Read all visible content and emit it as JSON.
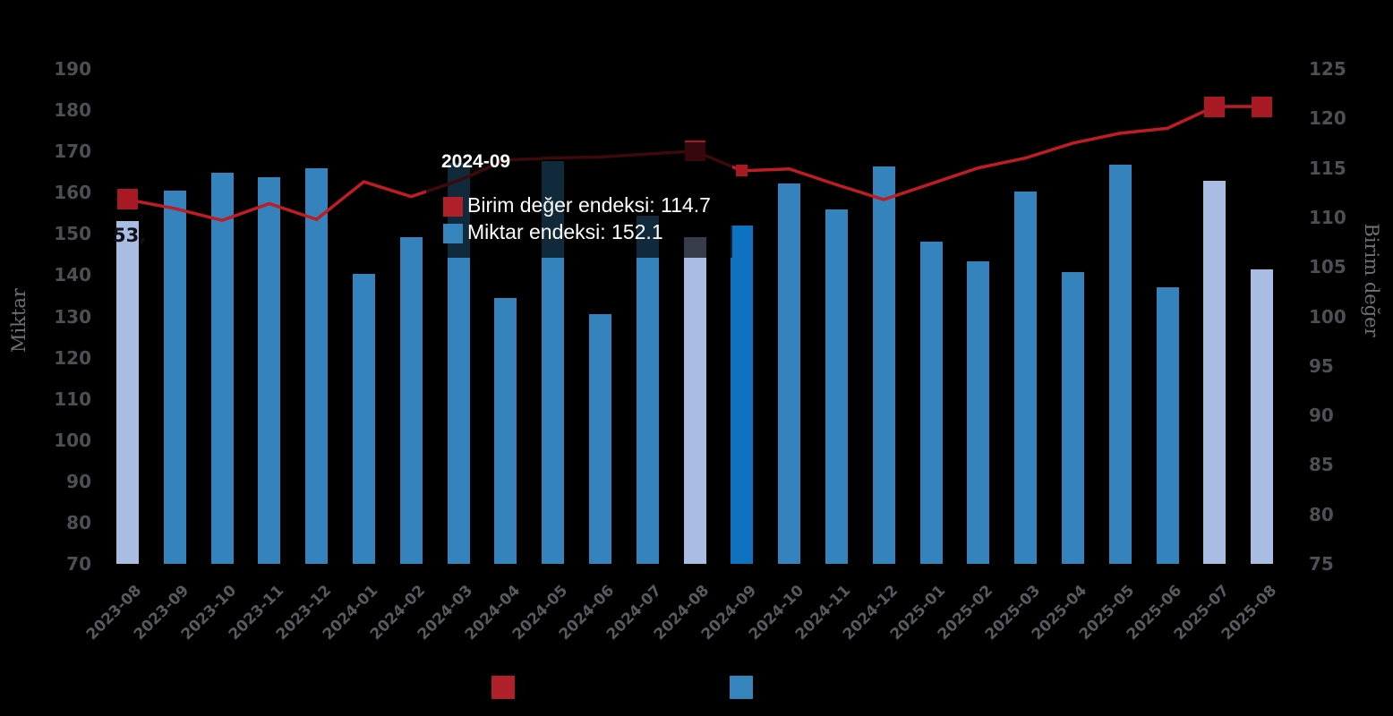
{
  "chart_data": {
    "type": "bar+line combo, dual y-axis",
    "categories": [
      "2023-08",
      "2023-09",
      "2023-10",
      "2023-11",
      "2023-12",
      "2024-01",
      "2024-02",
      "2024-03",
      "2024-04",
      "2024-05",
      "2024-06",
      "2024-07",
      "2024-08",
      "2024-09",
      "2024-10",
      "2024-11",
      "2024-12",
      "2025-01",
      "2025-02",
      "2025-03",
      "2025-04",
      "2025-05",
      "2025-06",
      "2025-07",
      "2025-08"
    ],
    "series": [
      {
        "name": "Miktar endeksi",
        "type": "bar",
        "axis": "left",
        "values": [
          153.2,
          160.4,
          164.9,
          163.7,
          165.9,
          140.2,
          149.2,
          167.3,
          134.4,
          167.6,
          130.5,
          154.4,
          149.2,
          152.1,
          162.3,
          156.0,
          166.4,
          148.1,
          143.3,
          160.2,
          140.7,
          166.7,
          137.1,
          162.9,
          141.4
        ],
        "highlight_indices": [
          0,
          12,
          23,
          24
        ],
        "hover_index": 13
      },
      {
        "name": "Birim değer endeksi",
        "type": "line",
        "axis": "right",
        "values": [
          111.8,
          110.9,
          109.7,
          111.4,
          109.8,
          113.6,
          112.1,
          113.7,
          115.8,
          116.0,
          116.1,
          116.4,
          116.7,
          114.7,
          114.9,
          113.3,
          111.8,
          113.4,
          115.0,
          116.0,
          117.5,
          118.5,
          119.0,
          121.2,
          121.2
        ],
        "big_marker_indices": [
          0,
          12,
          23,
          24
        ],
        "small_marker_indices": [
          13
        ]
      }
    ],
    "ylabel_left": "Miktar",
    "ylabel_right": "Birim değer",
    "ylim_left": [
      70,
      190
    ],
    "ylim_right": [
      75,
      125
    ],
    "left_ticks": [
      190,
      180,
      170,
      160,
      150,
      140,
      130,
      120,
      110,
      100,
      90,
      80,
      70
    ],
    "right_ticks": [
      125,
      120,
      115,
      110,
      105,
      100,
      95,
      90,
      85,
      80,
      75
    ],
    "grid": false,
    "legend_position": "bottom"
  },
  "tooltip": {
    "title": "2024-09",
    "rows": [
      {
        "label": "Birim değer endeksi",
        "value": "114.7",
        "color": "#b0202a"
      },
      {
        "label": "Miktar endeksi",
        "value": "152.1",
        "color": "#3584bc"
      }
    ]
  },
  "data_label": {
    "text": "53,"
  },
  "colors": {
    "background": "#000000",
    "bar_normal": "#3483bc",
    "bar_hover": "#0f72c1",
    "bar_highlight": "#a8bce4",
    "line": "#bf1c24",
    "marker": "#a81a23",
    "y_tick_text": "#4e4f54",
    "x_tick_text": "#595a5f",
    "axis_title_text": "#6f7074",
    "tooltip_bg": "rgba(0,0,0,0.68)",
    "tooltip_text": "#ffffff",
    "legend_red": "#b0202a",
    "legend_blue": "#3584bc"
  }
}
